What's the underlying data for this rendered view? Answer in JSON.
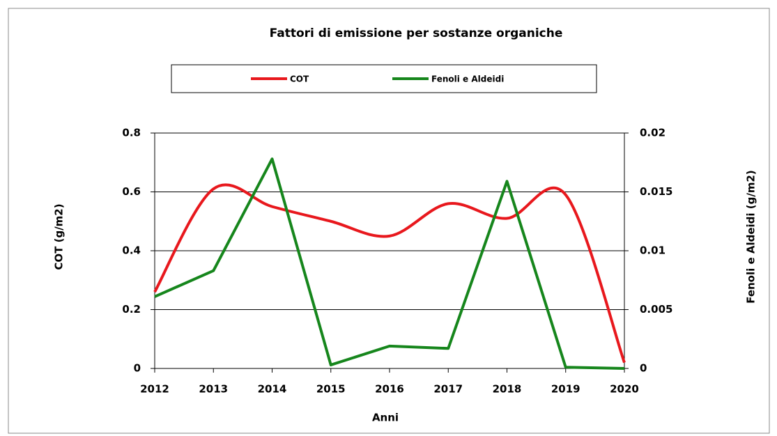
{
  "chart_data": {
    "type": "line",
    "title": "Fattori di emissione per sostanze organiche",
    "x_label": "Anni",
    "y_label": "COT (g/m2)",
    "y2_label": "Fenoli e Aldeidi (g/m2)",
    "categories": [
      "2012",
      "2013",
      "2014",
      "2015",
      "2016",
      "2017",
      "2018",
      "2019",
      "2020"
    ],
    "series": [
      {
        "name": "COT",
        "color": "#e8181d",
        "smooth": true,
        "values": [
          0.26,
          0.61,
          0.55,
          0.5,
          0.45,
          0.56,
          0.51,
          0.59,
          0.02
        ]
      },
      {
        "name": "Fenoli e Aldeidi",
        "color": "#16861c",
        "axis": "y2",
        "values": [
          0.0061,
          0.0083,
          0.0178,
          0.0003,
          0.0019,
          0.0017,
          0.0159,
          0.0001,
          0
        ]
      }
    ],
    "ylim": [
      0,
      0.8
    ],
    "yticks": [
      0,
      0.2,
      0.4,
      0.6,
      0.8
    ],
    "y2lim": [
      0,
      0.02
    ],
    "y2ticks": [
      0,
      0.005,
      0.01,
      0.015,
      0.02
    ],
    "grid": true,
    "legend": "top"
  }
}
